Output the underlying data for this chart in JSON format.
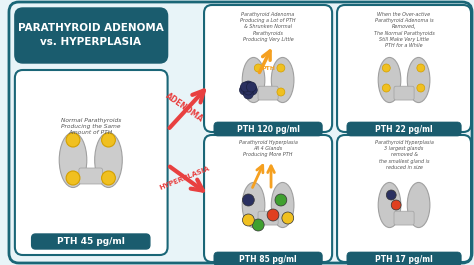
{
  "bg_color": "#e8f4f8",
  "teal_dark": "#1a5c6e",
  "teal_border": "#1a6677",
  "title_box_color": "#1a5c6e",
  "title_text": "PARATHYROID ADENOMA\nvs. HYPERPLASIA",
  "title_color": "#ffffff",
  "thyroid_body_color": "#c8c8c8",
  "thyroid_inner_color": "#d8d8d8",
  "card_bg": "#f0f0f0",
  "card_border": "#1a6677",
  "arrow_adenoma_color": "#e84040",
  "arrow_hyperplasia_color": "#e84040",
  "pth_label_color": "#1a5c6e",
  "labels": {
    "left_caption": "Normal Parathyroids\nProducing the Same\nAmount of PTH",
    "left_pth": "PTH 45 pg/ml",
    "tl_caption": "Parathyroid Adenoma\nProducing a Lot of PTH\n& Shrunken Normal\nParathyroids\nProducing Very Little",
    "tl_pth": "PTH 120 pg/ml",
    "tr_caption": "When the Over-active\nParathyroid Adenoma is\nRemoved,\nThe Normal Parathyroids\nStill Make Very Little\nPTH for a While",
    "tr_pth": "PTH 22 pg/ml",
    "bl_caption": "Parathyroid Hyperplasia\nAll 4 Glands\nProducing More PTH",
    "bl_pth": "PTH 85 pg/ml",
    "br_caption": "Parathyroid Hyperplasia\n3 largest glands\nremoved &\nthe smallest gland is\nreduced in size",
    "br_pth": "PTH 17 pg/ml"
  },
  "adenoma_label": "ADENOMA",
  "hyperplasia_label": "HYPERPLASIA"
}
